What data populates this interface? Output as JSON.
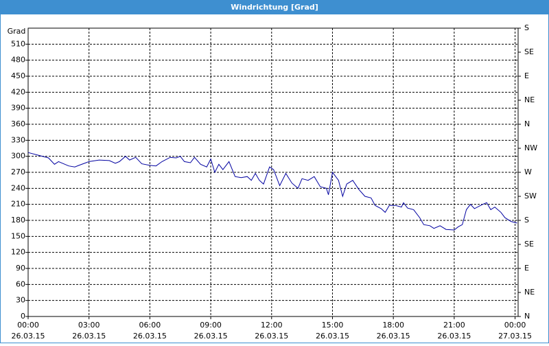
{
  "chart_data": {
    "type": "line",
    "title": "Windrichtung [Grad]",
    "ylabel": "Grad",
    "grid": true,
    "xlim": [
      0,
      24.15
    ],
    "xticks": [
      {
        "value": 0,
        "label": "00:00\n26.03.15"
      },
      {
        "value": 3,
        "label": "03:00\n26.03.15"
      },
      {
        "value": 6,
        "label": "06:00\n26.03.15"
      },
      {
        "value": 9,
        "label": "09:00\n26.03.15"
      },
      {
        "value": 12,
        "label": "12:00\n26.03.15"
      },
      {
        "value": 15,
        "label": "15:00\n26.03.15"
      },
      {
        "value": 18,
        "label": "18:00\n26.03.15"
      },
      {
        "value": 21,
        "label": "21:00\n26.03.15"
      },
      {
        "value": 24,
        "label": "00:00\n27.03.15"
      }
    ],
    "ylim": [
      0,
      540
    ],
    "yticks": [
      0,
      30,
      60,
      90,
      120,
      150,
      180,
      210,
      240,
      270,
      300,
      330,
      360,
      390,
      420,
      450,
      480,
      510
    ],
    "y2lim": [
      0,
      540
    ],
    "y2ticks": [
      {
        "value": 0,
        "label": "N"
      },
      {
        "value": 45,
        "label": "NE"
      },
      {
        "value": 90,
        "label": "E"
      },
      {
        "value": 135,
        "label": "SE"
      },
      {
        "value": 180,
        "label": "S"
      },
      {
        "value": 225,
        "label": "SW"
      },
      {
        "value": 270,
        "label": "W"
      },
      {
        "value": 315,
        "label": "NW"
      },
      {
        "value": 360,
        "label": "N"
      },
      {
        "value": 405,
        "label": "NE"
      },
      {
        "value": 450,
        "label": "E"
      },
      {
        "value": 495,
        "label": "SE"
      },
      {
        "value": 540,
        "label": "S"
      }
    ],
    "x": [
      0,
      0.5,
      1,
      1.3,
      1.5,
      2,
      2.3,
      2.5,
      3,
      3.5,
      4,
      4.3,
      4.5,
      4.8,
      5,
      5.3,
      5.6,
      6,
      6.3,
      6.6,
      7,
      7.3,
      7.5,
      7.7,
      8,
      8.2,
      8.5,
      8.8,
      9,
      9.2,
      9.4,
      9.6,
      9.9,
      10.2,
      10.5,
      10.8,
      11,
      11.2,
      11.4,
      11.6,
      11.9,
      12.1,
      12.4,
      12.7,
      13,
      13.3,
      13.5,
      13.8,
      14.1,
      14.4,
      14.7,
      14.8,
      15,
      15.3,
      15.5,
      15.7,
      16,
      16.3,
      16.6,
      16.9,
      17.1,
      17.4,
      17.6,
      17.8,
      18.1,
      18.4,
      18.5,
      18.7,
      19,
      19.3,
      19.5,
      19.8,
      20,
      20.3,
      20.6,
      21,
      21.2,
      21.4,
      21.6,
      21.8,
      22,
      22.4,
      22.6,
      22.8,
      23,
      23.3,
      23.5,
      23.8,
      24,
      24.1
    ],
    "series": [
      {
        "name": "Windrichtung",
        "color": "#0000a0",
        "values": [
          307,
          302,
          297,
          285,
          290,
          282,
          280,
          283,
          290,
          293,
          292,
          287,
          290,
          300,
          293,
          298,
          286,
          283,
          282,
          290,
          298,
          297,
          300,
          290,
          288,
          298,
          285,
          280,
          295,
          270,
          285,
          275,
          290,
          262,
          260,
          262,
          255,
          268,
          255,
          248,
          280,
          275,
          245,
          268,
          250,
          240,
          258,
          255,
          262,
          243,
          240,
          228,
          270,
          255,
          225,
          248,
          255,
          238,
          225,
          222,
          208,
          202,
          195,
          208,
          208,
          205,
          213,
          203,
          200,
          185,
          172,
          170,
          165,
          170,
          163,
          162,
          168,
          172,
          200,
          210,
          202,
          210,
          213,
          200,
          205,
          195,
          185,
          178,
          176,
          175
        ]
      }
    ]
  }
}
